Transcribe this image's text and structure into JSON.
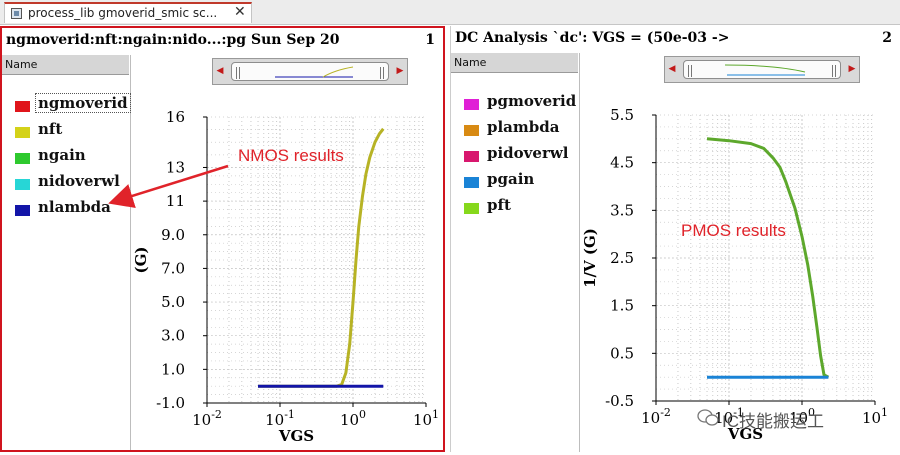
{
  "tab": {
    "title": "process_lib gmoverid_smic sc...",
    "close": "✕"
  },
  "left": {
    "title": "ngmoverid:nft:ngain:nido...:pg  Sun Sep 20",
    "number": "1",
    "name_header": "Name",
    "legend": [
      {
        "label": "ngmoverid",
        "color": "#e0151b"
      },
      {
        "label": "nft",
        "color": "#d4d219"
      },
      {
        "label": "ngain",
        "color": "#2ec92e"
      },
      {
        "label": "nidoverwl",
        "color": "#27d6d6"
      },
      {
        "label": "nlambda",
        "color": "#1315a8"
      }
    ],
    "annotation": "NMOS results"
  },
  "right": {
    "title": "DC Analysis `dc': VGS = (50e-03 ->",
    "number": "2",
    "name_header": "Name",
    "legend": [
      {
        "label": "pgmoverid",
        "color": "#e01fd6"
      },
      {
        "label": "plambda",
        "color": "#d88a13"
      },
      {
        "label": "pidoverwl",
        "color": "#d8176e"
      },
      {
        "label": "pgain",
        "color": "#1a83d6"
      },
      {
        "label": "pft",
        "color": "#86d81c"
      }
    ],
    "annotation": "PMOS results",
    "watermark": "IC技能搬运工"
  },
  "chart_data": [
    {
      "type": "line",
      "xlabel": "VGS",
      "ylabel": "(G)",
      "x_scale": "log",
      "xlim": [
        0.01,
        10
      ],
      "ylim": [
        -1.0,
        16
      ],
      "x_ticks": [
        "10^-2",
        "10^-1",
        "10^0",
        "10^1"
      ],
      "y_ticks": [
        "-1.0",
        "1.0",
        "3.0",
        "5.0",
        "7.0",
        "9.0",
        "11",
        "13",
        "16"
      ],
      "grid": true,
      "series": [
        {
          "name": "nft",
          "color": "#b7b325",
          "x": [
            0.05,
            0.6,
            0.7,
            0.8,
            0.9,
            1.0,
            1.1,
            1.2,
            1.35,
            1.5,
            1.7,
            2.0,
            2.3,
            2.6
          ],
          "y": [
            0.0,
            0.0,
            0.1,
            0.8,
            2.5,
            5.0,
            7.5,
            9.5,
            11.3,
            12.6,
            13.6,
            14.5,
            15.0,
            15.3
          ]
        },
        {
          "name": "nlambda",
          "color": "#1315a8",
          "x": [
            0.05,
            2.6
          ],
          "y": [
            0.0,
            0.0
          ]
        }
      ]
    },
    {
      "type": "line",
      "xlabel": "VGS",
      "ylabel": "1/V (G)",
      "x_scale": "log",
      "xlim": [
        0.01,
        10
      ],
      "ylim": [
        -0.5,
        5.5
      ],
      "x_ticks": [
        "10^-2",
        "10^-1",
        "10^0",
        "10^1"
      ],
      "y_ticks": [
        "-0.5",
        "0.5",
        "1.5",
        "2.5",
        "3.5",
        "4.5",
        "5.5"
      ],
      "grid": true,
      "series": [
        {
          "name": "pft",
          "color": "#5da82c",
          "x": [
            0.05,
            0.1,
            0.2,
            0.3,
            0.4,
            0.5,
            0.6,
            0.8,
            1.0,
            1.2,
            1.4,
            1.6,
            1.8,
            2.0,
            2.3
          ],
          "y": [
            5.0,
            4.96,
            4.9,
            4.8,
            4.6,
            4.4,
            4.1,
            3.55,
            2.95,
            2.35,
            1.7,
            1.05,
            0.45,
            0.05,
            0.0
          ]
        },
        {
          "name": "pgain",
          "color": "#1a83d6",
          "x": [
            0.05,
            2.3
          ],
          "y": [
            0.0,
            0.0
          ]
        }
      ]
    }
  ]
}
